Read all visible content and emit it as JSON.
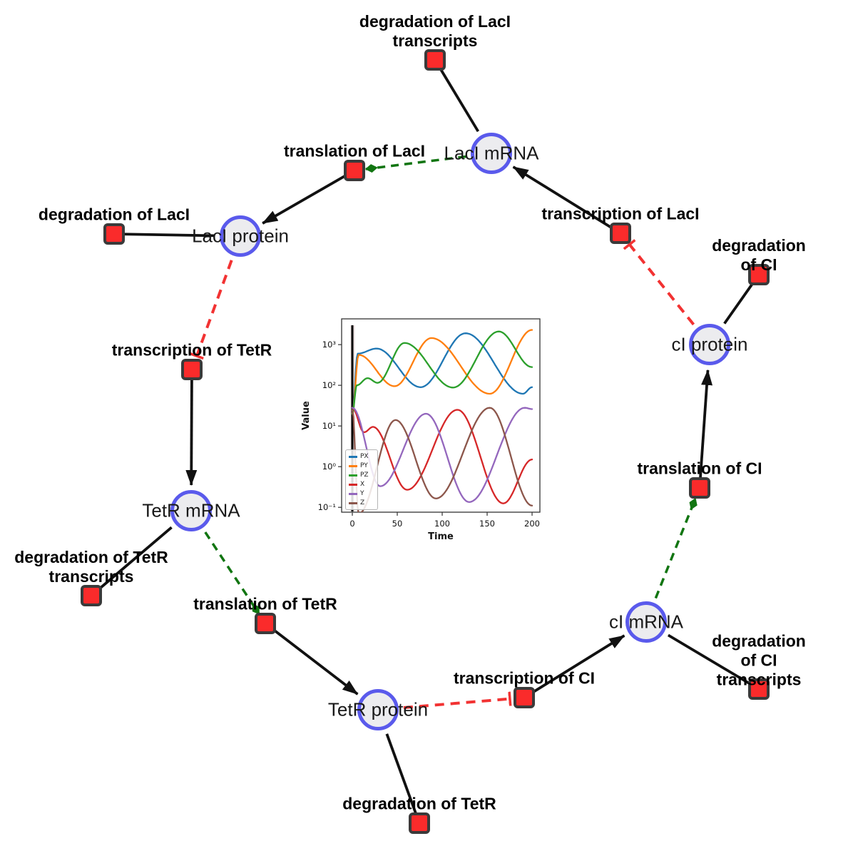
{
  "diagram": {
    "species": [
      {
        "id": "laci_mrna",
        "label": "LacI mRNA"
      },
      {
        "id": "laci_protein",
        "label": "LacI protein"
      },
      {
        "id": "tetr_mrna",
        "label": "TetR mRNA"
      },
      {
        "id": "tetr_protein",
        "label": "TetR protein"
      },
      {
        "id": "ci_mrna",
        "label": "cI mRNA"
      },
      {
        "id": "ci_protein",
        "label": "cI protein"
      }
    ],
    "reactions": [
      {
        "id": "deg_laci_tx",
        "label": "degradation of LacI\ntranscripts"
      },
      {
        "id": "tl_laci",
        "label": "translation of LacI"
      },
      {
        "id": "deg_laci",
        "label": "degradation of LacI"
      },
      {
        "id": "tx_laci",
        "label": "transcription of LacI"
      },
      {
        "id": "deg_ci",
        "label": "degradation of CI"
      },
      {
        "id": "tx_tetr",
        "label": "transcription of TetR"
      },
      {
        "id": "deg_tetr_tx",
        "label": "degradation of TetR\ntranscripts"
      },
      {
        "id": "tl_tetr",
        "label": "translation of TetR"
      },
      {
        "id": "deg_tetr",
        "label": "degradation of TetR"
      },
      {
        "id": "tx_ci",
        "label": "transcription of CI"
      },
      {
        "id": "deg_ci_tx",
        "label": "degradation of CI\ntranscripts"
      },
      {
        "id": "tl_ci",
        "label": "translation of CI"
      }
    ],
    "edges": [
      {
        "from": "laci_mrna",
        "to": "deg_laci_tx",
        "type": "reactant"
      },
      {
        "from": "tx_laci",
        "to": "laci_mrna",
        "type": "product"
      },
      {
        "from": "laci_mrna",
        "to": "tl_laci",
        "type": "modifier"
      },
      {
        "from": "tl_laci",
        "to": "laci_protein",
        "type": "product"
      },
      {
        "from": "laci_protein",
        "to": "deg_laci",
        "type": "reactant"
      },
      {
        "from": "laci_protein",
        "to": "tx_tetr",
        "type": "inhibitor"
      },
      {
        "from": "tx_tetr",
        "to": "tetr_mrna",
        "type": "product"
      },
      {
        "from": "tetr_mrna",
        "to": "deg_tetr_tx",
        "type": "reactant"
      },
      {
        "from": "tetr_mrna",
        "to": "tl_tetr",
        "type": "modifier"
      },
      {
        "from": "tl_tetr",
        "to": "tetr_protein",
        "type": "product"
      },
      {
        "from": "tetr_protein",
        "to": "deg_tetr",
        "type": "reactant"
      },
      {
        "from": "tetr_protein",
        "to": "tx_ci",
        "type": "inhibitor"
      },
      {
        "from": "tx_ci",
        "to": "ci_mrna",
        "type": "product"
      },
      {
        "from": "ci_mrna",
        "to": "deg_ci_tx",
        "type": "reactant"
      },
      {
        "from": "ci_mrna",
        "to": "tl_ci",
        "type": "modifier"
      },
      {
        "from": "tl_ci",
        "to": "ci_protein",
        "type": "product"
      },
      {
        "from": "ci_protein",
        "to": "deg_ci",
        "type": "reactant"
      },
      {
        "from": "ci_protein",
        "to": "tx_laci",
        "type": "inhibitor"
      }
    ],
    "colors": {
      "edge_black": "#111111",
      "modifier_green": "#117511",
      "inhibitor_red": "#f23232",
      "node_border": "#5a5aec",
      "node_fill": "#ececef",
      "square_fill": "#fa2b2b",
      "square_border": "#3a3a3a"
    }
  },
  "chart_data": {
    "type": "line",
    "title": "",
    "xlabel": "Time",
    "ylabel": "Value",
    "x_ticks": [
      0,
      50,
      100,
      150,
      200
    ],
    "y_scale": "log",
    "y_ticks": [
      {
        "label": "10³",
        "value": 1000
      },
      {
        "label": "10²",
        "value": 100
      },
      {
        "label": "10¹",
        "value": 10
      },
      {
        "label": "10⁰",
        "value": 1
      },
      {
        "label": "10⁻¹",
        "value": 0.1
      }
    ],
    "xlim": [
      -11.9,
      208.7
    ],
    "ylim": [
      0.076,
      4300
    ],
    "vline_t": 0,
    "legend_position": "lower left",
    "series": [
      {
        "name": "PX",
        "color": "#1f77b4",
        "points": [
          [
            0,
            20
          ],
          [
            6,
            600
          ],
          [
            27,
            800
          ],
          [
            76,
            90
          ],
          [
            126,
            1900
          ],
          [
            190,
            62
          ],
          [
            200,
            90
          ]
        ]
      },
      {
        "name": "PY",
        "color": "#ff7f0e",
        "points": [
          [
            0,
            20
          ],
          [
            7,
            560
          ],
          [
            47,
            95
          ],
          [
            88,
            1450
          ],
          [
            153,
            62
          ],
          [
            200,
            2300
          ]
        ]
      },
      {
        "name": "PZ",
        "color": "#2ca02c",
        "points": [
          [
            0,
            20
          ],
          [
            5,
            100
          ],
          [
            17,
            150
          ],
          [
            28,
            115
          ],
          [
            58,
            1100
          ],
          [
            112,
            88
          ],
          [
            163,
            2100
          ],
          [
            200,
            280
          ]
        ]
      },
      {
        "name": "X",
        "color": "#d62728",
        "points": [
          [
            0,
            28
          ],
          [
            13,
            7
          ],
          [
            23,
            9.5
          ],
          [
            61,
            0.27
          ],
          [
            117,
            25
          ],
          [
            168,
            0.125
          ],
          [
            200,
            1.5
          ]
        ]
      },
      {
        "name": "Y",
        "color": "#9467bd",
        "points": [
          [
            0,
            28
          ],
          [
            31,
            0.33
          ],
          [
            82,
            20
          ],
          [
            130,
            0.135
          ],
          [
            192,
            28
          ],
          [
            200,
            26
          ]
        ]
      },
      {
        "name": "Z",
        "color": "#8c564b",
        "points": [
          [
            0,
            25
          ],
          [
            7,
            0.07
          ],
          [
            48,
            14
          ],
          [
            93,
            0.165
          ],
          [
            153,
            28
          ],
          [
            200,
            0.11
          ]
        ]
      }
    ]
  }
}
